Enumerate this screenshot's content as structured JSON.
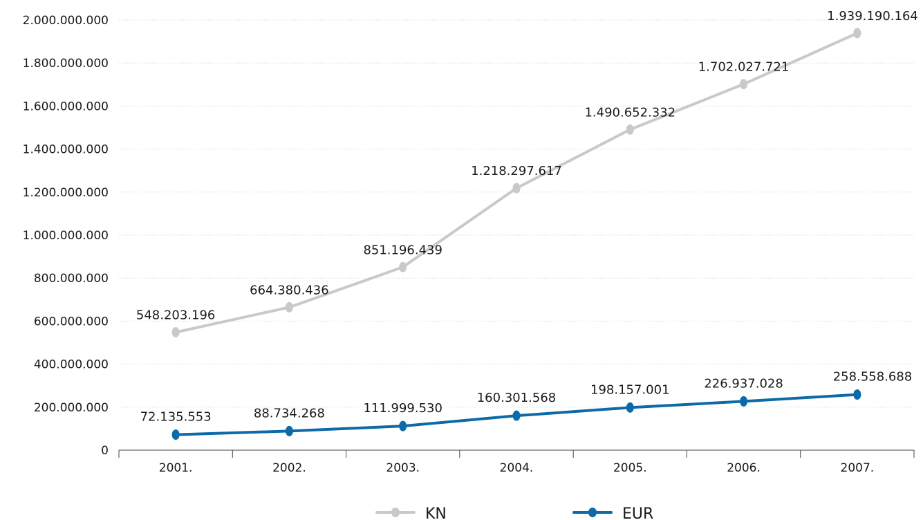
{
  "chart_data": {
    "type": "line",
    "categories": [
      "2001.",
      "2002.",
      "2003.",
      "2004.",
      "2005.",
      "2006.",
      "2007."
    ],
    "series": [
      {
        "name": "KN",
        "color": "#c9c9c9",
        "values": [
          548203196,
          664380436,
          851196439,
          1218297617,
          1490652332,
          1702027721,
          1939190164
        ],
        "labels": [
          "548.203.196",
          "664.380.436",
          "851.196.439",
          "1.218.297.617",
          "1.490.652.332",
          "1.702.027.721",
          "1.939.190.164"
        ]
      },
      {
        "name": "EUR",
        "color": "#0d6aa8",
        "values": [
          72135553,
          88734268,
          111999530,
          160301568,
          198157001,
          226937028,
          258558688
        ],
        "labels": [
          "72.135.553",
          "88.734.268",
          "111.999.530",
          "160.301.568",
          "198.157.001",
          "226.937.028",
          "258.558.688"
        ]
      }
    ],
    "yticks": [
      "0",
      "200.000.000",
      "400.000.000",
      "600.000.000",
      "800.000.000",
      "1.000.000.000",
      "1.200.000.000",
      "1.400.000.000",
      "1.600.000.000",
      "1.800.000.000",
      "2.000.000.000"
    ],
    "ylim": [
      0,
      2000000000
    ],
    "grid": true,
    "legend_position": "bottom-center",
    "title": "",
    "xlabel": "",
    "ylabel": ""
  }
}
